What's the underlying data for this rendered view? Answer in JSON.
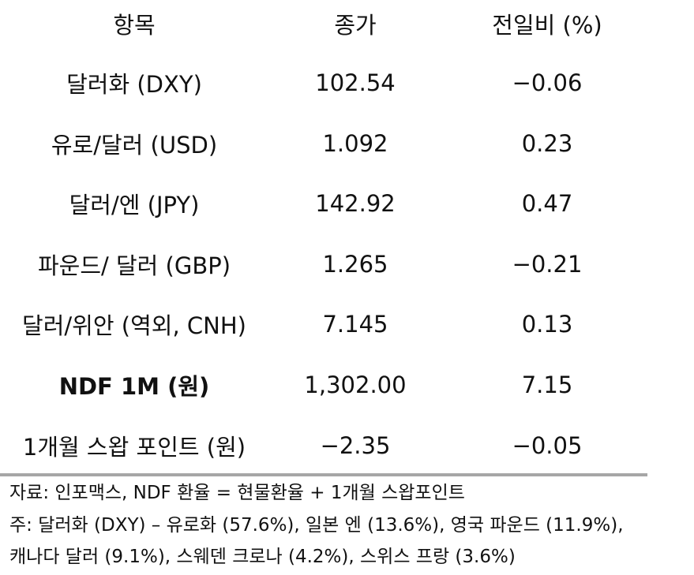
{
  "table": {
    "header": [
      "항목",
      "종가",
      "전일비 (%)"
    ],
    "rows": [
      [
        "달러화 (DXY)",
        "102.54",
        "−0.06"
      ],
      [
        "유로/달러 (USD)",
        "1.092",
        "0.23"
      ],
      [
        "달러/엔 (JPY)",
        "142.92",
        "0.47"
      ],
      [
        "파운드/ 달러 (GBP)",
        "1.265",
        "−0.21"
      ],
      [
        "달러/위안 (역외, CNH)",
        "7.145",
        "0.13"
      ],
      [
        "NDF 1M (원)",
        "1,302.00",
        "7.15"
      ],
      [
        "1개월 스왑 포인트 (원)",
        "−2.35",
        "−0.05"
      ]
    ]
  },
  "notes": [
    "자료: 인포맥스, NDF 환율 = 현물환율 + 1개월 스왑포인트",
    "주: 달러화 (DXY) – 유로화 (57.6%), 일본 엔 (13.6%), 영국 파운드 (11.9%),",
    "캐나다 달러 (9.1%), 스웨덴 크로나 (4.2%), 스위스 프랑 (3.6%)"
  ]
}
